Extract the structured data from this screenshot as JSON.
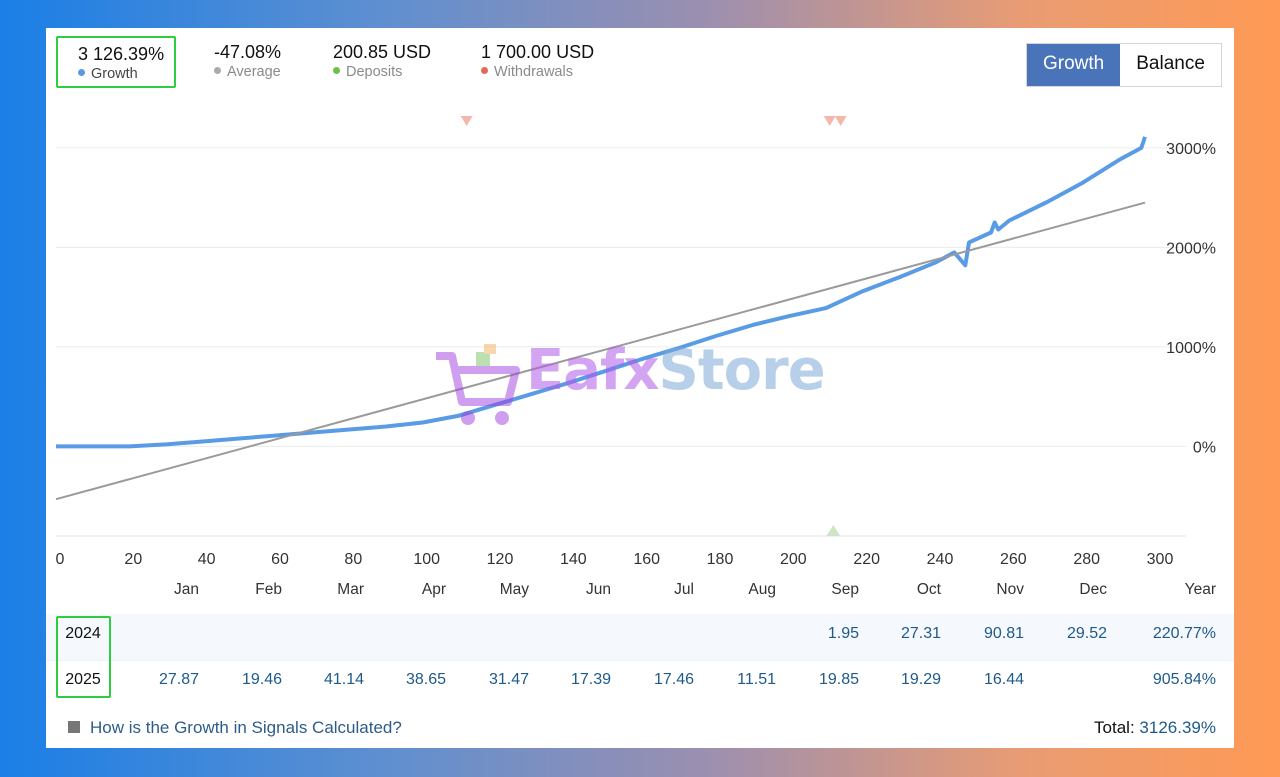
{
  "stats": {
    "growth": {
      "value": "3 126.39%",
      "label": "Growth",
      "color": "#5a9be6"
    },
    "average": {
      "value": "-47.08%",
      "label": "Average",
      "color": "#aaaaaa"
    },
    "deposits": {
      "value": "200.85 USD",
      "label": "Deposits",
      "color": "#6fbf4a"
    },
    "withdrawals": {
      "value": "1 700.00 USD",
      "label": "Withdrawals",
      "color": "#e06a55"
    }
  },
  "toggle": {
    "growth_label": "Growth",
    "balance_label": "Balance",
    "active": "Growth"
  },
  "watermark": {
    "part1": "Eafx",
    "part2": "Store"
  },
  "chart_data": {
    "type": "line",
    "x_ticks": [
      "0",
      "20",
      "40",
      "60",
      "80",
      "100",
      "120",
      "140",
      "160",
      "180",
      "200",
      "220",
      "240",
      "260",
      "280",
      "300"
    ],
    "y_ticks": [
      "3000%",
      "2000%",
      "1000%",
      "0%"
    ],
    "xlim": [
      0,
      300
    ],
    "ylim": [
      -900,
      3300
    ],
    "grid": true,
    "series": [
      {
        "color": "#5a9be6",
        "points": [
          [
            0,
            0
          ],
          [
            20,
            0
          ],
          [
            30,
            20
          ],
          [
            40,
            50
          ],
          [
            50,
            80
          ],
          [
            60,
            110
          ],
          [
            70,
            140
          ],
          [
            80,
            170
          ],
          [
            90,
            200
          ],
          [
            100,
            240
          ],
          [
            110,
            310
          ],
          [
            120,
            420
          ],
          [
            130,
            530
          ],
          [
            140,
            640
          ],
          [
            150,
            760
          ],
          [
            160,
            880
          ],
          [
            170,
            990
          ],
          [
            180,
            1110
          ],
          [
            190,
            1220
          ],
          [
            200,
            1310
          ],
          [
            210,
            1390
          ],
          [
            220,
            1560
          ],
          [
            230,
            1700
          ],
          [
            240,
            1850
          ],
          [
            245,
            1950
          ],
          [
            248,
            1820
          ],
          [
            249,
            2050
          ],
          [
            255,
            2150
          ],
          [
            256,
            2250
          ],
          [
            257,
            2180
          ],
          [
            260,
            2270
          ],
          [
            270,
            2450
          ],
          [
            280,
            2650
          ],
          [
            290,
            2880
          ],
          [
            296,
            3000
          ],
          [
            297,
            3110
          ]
        ]
      },
      {
        "color": "#9a9a9a",
        "points": [
          [
            0,
            -530
          ],
          [
            297,
            2450
          ]
        ]
      }
    ],
    "withdrawal_markers_x": [
      112,
      211,
      214
    ],
    "deposit_markers_x": [
      212
    ]
  },
  "monthly": {
    "headers": [
      "Jan",
      "Feb",
      "Mar",
      "Apr",
      "May",
      "Jun",
      "Jul",
      "Aug",
      "Sep",
      "Oct",
      "Nov",
      "Dec",
      "Year"
    ],
    "rows": [
      {
        "year": "2024",
        "values": [
          "",
          "",
          "",
          "",
          "",
          "",
          "",
          "",
          "1.95",
          "27.31",
          "90.81",
          "29.52",
          "220.77%"
        ]
      },
      {
        "year": "2025",
        "values": [
          "27.87",
          "19.46",
          "41.14",
          "38.65",
          "31.47",
          "17.39",
          "17.46",
          "11.51",
          "19.85",
          "19.29",
          "16.44",
          "",
          "905.84%"
        ]
      }
    ]
  },
  "footer": {
    "link": "How is the Growth in Signals Calculated?",
    "total_label": "Total:",
    "total_value": "3126.39%"
  }
}
